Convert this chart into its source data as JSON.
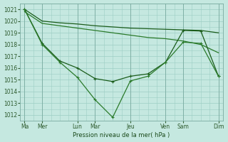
{
  "background_color": "#c5e8e0",
  "grid_color": "#9ccec4",
  "line_dark": "#1a5c1a",
  "line_mid": "#2a7a2a",
  "ylabel_text": "Pression niveau de la mer( hPa )",
  "ylim": [
    1011.5,
    1021.5
  ],
  "yticks": [
    1012,
    1013,
    1014,
    1015,
    1016,
    1017,
    1018,
    1019,
    1020,
    1021
  ],
  "x_tick_positions": [
    0,
    2,
    6,
    8,
    12,
    16,
    18,
    22
  ],
  "x_tick_labels": [
    "Ma",
    "Mer",
    "Lun",
    "Mar",
    "Jeu",
    "Ven",
    "Sam",
    "Dim"
  ],
  "s1x": [
    0,
    2,
    4,
    6,
    8,
    10,
    12,
    14,
    16,
    18,
    20,
    22
  ],
  "s1y": [
    1021.0,
    1020.0,
    1019.85,
    1019.75,
    1019.6,
    1019.5,
    1019.4,
    1019.35,
    1019.3,
    1019.25,
    1019.2,
    1019.0
  ],
  "s2x": [
    0,
    2,
    4,
    6,
    8,
    10,
    12,
    14,
    16,
    18,
    20,
    22
  ],
  "s2y": [
    1020.8,
    1019.8,
    1019.6,
    1019.4,
    1019.2,
    1019.0,
    1018.8,
    1018.6,
    1018.5,
    1018.3,
    1018.0,
    1017.3
  ],
  "s3x": [
    0,
    2,
    4,
    6,
    8,
    10,
    12,
    14,
    16,
    18,
    20,
    22
  ],
  "s3y": [
    1021.0,
    1018.1,
    1016.6,
    1016.0,
    1015.1,
    1014.85,
    1015.3,
    1015.5,
    1016.5,
    1019.2,
    1019.15,
    1015.3
  ],
  "s4x": [
    0,
    2,
    4,
    6,
    8,
    10,
    12,
    14,
    16,
    18,
    20,
    22
  ],
  "s4y": [
    1021.0,
    1018.0,
    1016.5,
    1015.2,
    1013.3,
    1011.8,
    1014.9,
    1015.3,
    1016.5,
    1018.2,
    1018.1,
    1015.3
  ]
}
